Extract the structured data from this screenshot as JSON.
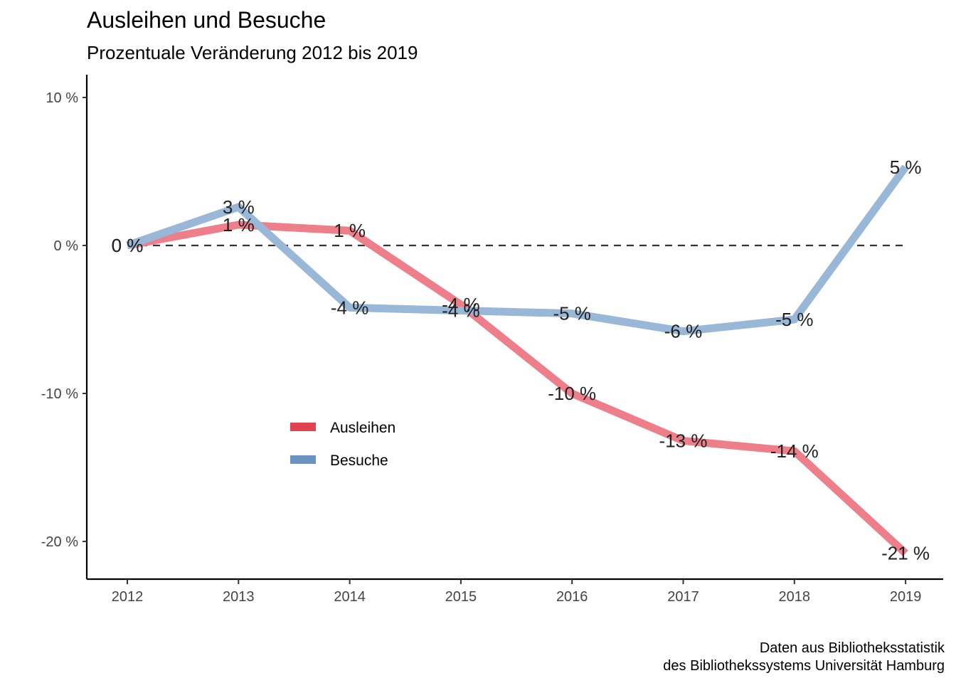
{
  "chart_data": {
    "type": "line",
    "title": "Ausleihen und Besuche",
    "subtitle": "Prozentuale Veränderung 2012 bis 2019",
    "caption": [
      "Daten aus Bibliotheksstatistik",
      "des Bibliothekssystems Universität Hamburg"
    ],
    "x": [
      "2012",
      "2013",
      "2014",
      "2015",
      "2016",
      "2017",
      "2018",
      "2019"
    ],
    "ylim": [
      -22.5,
      11.5
    ],
    "yticks": [
      10,
      0,
      -10,
      -20
    ],
    "ytick_labels": [
      "10 %",
      "0 %",
      "-10 %",
      "-20 %"
    ],
    "reference_line": 0,
    "legend_position": "inside-left",
    "series": [
      {
        "name": "Ausleihen",
        "color": "#E41A1C",
        "values": [
          0,
          1.4,
          1.0,
          -4.0,
          -10.0,
          -13.2,
          -13.9,
          -20.8
        ],
        "labels": [
          "0 %",
          "1 %",
          "1 %",
          "-4 %",
          "-10 %",
          "-13 %",
          "-14 %",
          "-21 %"
        ]
      },
      {
        "name": "Besuche",
        "color": "#377EB8",
        "values": [
          0,
          2.6,
          -4.2,
          -4.4,
          -4.6,
          -5.8,
          -5.0,
          5.3
        ],
        "labels": [
          "0 %",
          "3 %",
          "-4 %",
          "-4 %",
          "-5 %",
          "-6 %",
          "-5 %",
          "5 %"
        ]
      }
    ]
  }
}
